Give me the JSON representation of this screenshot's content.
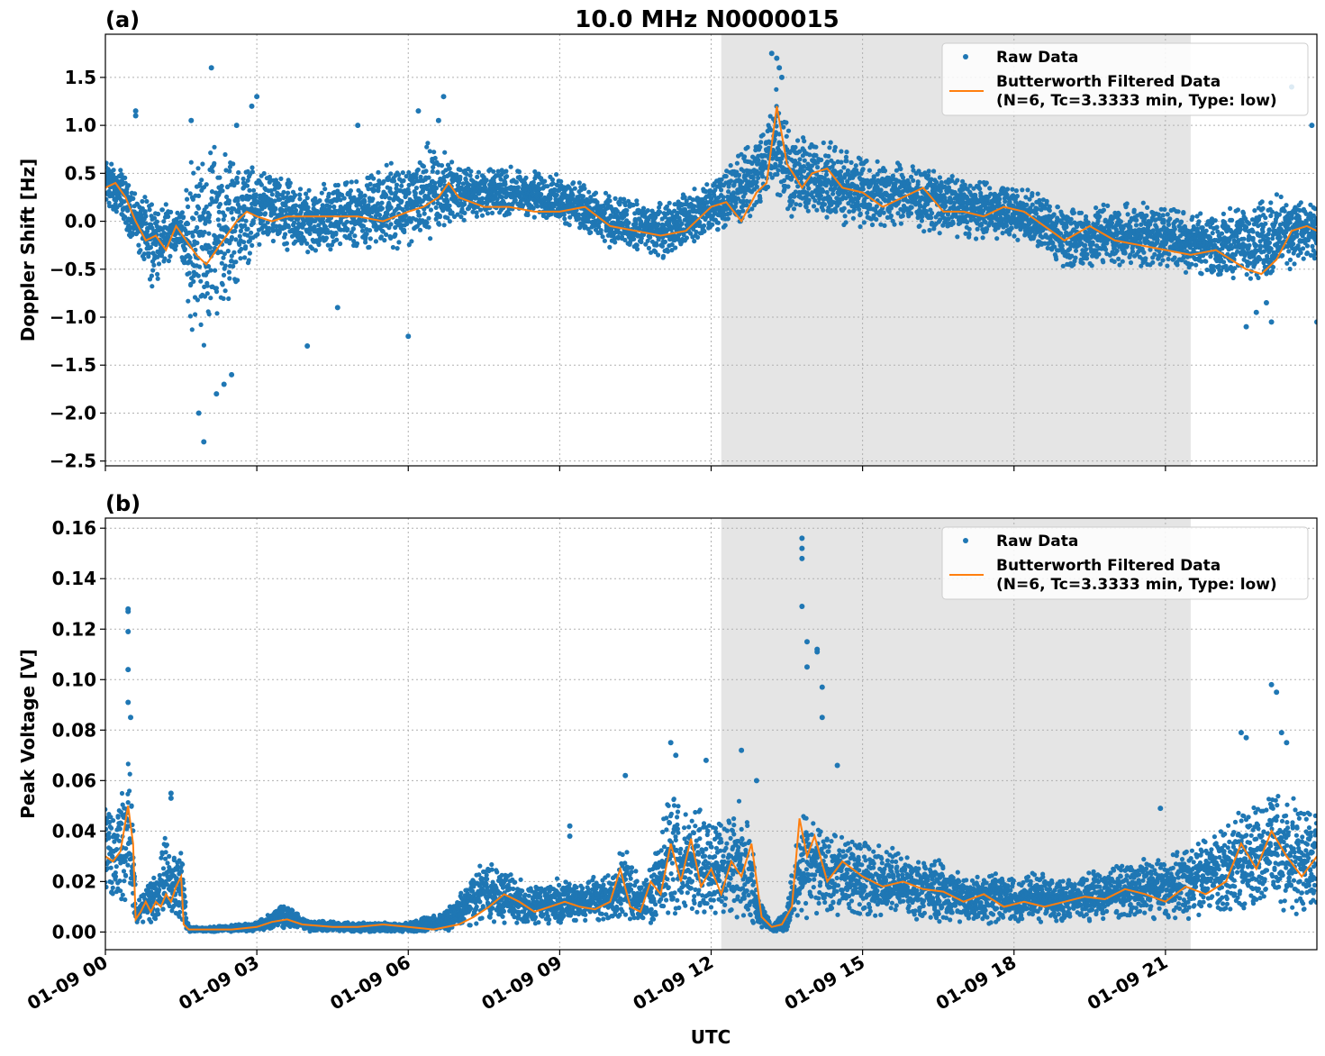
{
  "figure": {
    "title": "10.0 MHz N0000015",
    "xlabel": "UTC",
    "x_ticks": [
      "01-09 00",
      "01-09 03",
      "01-09 06",
      "01-09 09",
      "01-09 12",
      "01-09 15",
      "01-09 18",
      "01-09 21"
    ],
    "shaded_span_hours": [
      12.2,
      21.5
    ],
    "colors": {
      "raw": "#1f77b4",
      "filtered": "#ff7f0e",
      "shade": "#e5e5e5",
      "grid": "#b0b0b0"
    }
  },
  "chart_data": [
    {
      "type": "scatter",
      "panel_label": "(a)",
      "ylabel": "Doppler Shift [Hz]",
      "xlim_hours": [
        0,
        24
      ],
      "ylim": [
        -2.55,
        1.95
      ],
      "y_ticks": [
        1.5,
        1.0,
        0.5,
        0.0,
        -0.5,
        -1.0,
        -1.5,
        -2.0,
        -2.5
      ],
      "y_tick_labels": [
        "1.5",
        "1.0",
        "0.5",
        "0.0",
        "−0.5",
        "−1.0",
        "−1.5",
        "−2.0",
        "−2.5"
      ],
      "grid": true,
      "legend": {
        "placement": "top-right",
        "entries": [
          "Raw Data",
          "Butterworth Filtered Data",
          "(N=6, Tc=3.3333 min, Type: low)"
        ]
      },
      "series": [
        {
          "name": "Raw Data",
          "kind": "band",
          "x": [
            0,
            0.3,
            0.6,
            0.9,
            1.2,
            1.5,
            1.7,
            1.9,
            2.1,
            2.4,
            2.7,
            3.0,
            3.5,
            4.0,
            5.0,
            6.0,
            6.5,
            7.0,
            8.0,
            9.0,
            10.0,
            11.0,
            11.8,
            12.5,
            13.0,
            13.3,
            13.6,
            14.0,
            15.0,
            16.0,
            17.0,
            18.0,
            19.0,
            20.0,
            21.0,
            22.0,
            22.5,
            23.0,
            23.5,
            24.0
          ],
          "low": [
            0.1,
            0.0,
            -0.3,
            -0.7,
            -0.5,
            -0.3,
            -1.3,
            -1.4,
            -1.1,
            -1.0,
            -0.6,
            -0.3,
            -0.4,
            -0.4,
            -0.3,
            -0.3,
            -0.2,
            0.0,
            0.0,
            0.0,
            -0.3,
            -0.4,
            -0.2,
            -0.1,
            0.1,
            0.2,
            0.0,
            0.0,
            -0.1,
            -0.1,
            -0.2,
            -0.2,
            -0.5,
            -0.5,
            -0.5,
            -0.6,
            -0.6,
            -0.7,
            -0.5,
            -0.5
          ],
          "high": [
            0.7,
            0.6,
            0.3,
            0.3,
            0.2,
            0.1,
            0.8,
            0.9,
            0.9,
            0.8,
            0.7,
            0.6,
            0.5,
            0.4,
            0.5,
            0.7,
            0.9,
            0.6,
            0.6,
            0.5,
            0.3,
            0.2,
            0.4,
            0.7,
            1.0,
            1.5,
            1.0,
            0.9,
            0.7,
            0.6,
            0.5,
            0.4,
            0.2,
            0.2,
            0.2,
            0.1,
            0.2,
            0.3,
            0.3,
            0.2
          ]
        },
        {
          "name": "Raw Data outliers",
          "kind": "points",
          "x": [
            0.6,
            0.6,
            1.7,
            1.85,
            1.95,
            2.1,
            2.2,
            2.35,
            2.5,
            2.6,
            2.9,
            3.0,
            4.0,
            4.6,
            5.0,
            6.0,
            6.2,
            6.6,
            6.7,
            13.2,
            13.3,
            13.35,
            13.4,
            22.6,
            22.8,
            23.0,
            23.1,
            23.5,
            23.9,
            24.0
          ],
          "y": [
            1.1,
            1.15,
            1.05,
            -2.0,
            -2.3,
            1.6,
            -1.8,
            -1.7,
            -1.6,
            1.0,
            1.2,
            1.3,
            -1.3,
            -0.9,
            1.0,
            -1.2,
            1.15,
            1.05,
            1.3,
            1.75,
            1.7,
            1.6,
            1.5,
            -1.1,
            -0.95,
            -0.85,
            -1.05,
            1.4,
            1.0,
            -1.05
          ]
        },
        {
          "name": "Butterworth Filtered Data",
          "kind": "line",
          "x": [
            0,
            0.2,
            0.4,
            0.6,
            0.8,
            1.0,
            1.2,
            1.4,
            1.6,
            1.8,
            2.0,
            2.2,
            2.4,
            2.6,
            2.8,
            3.0,
            3.3,
            3.6,
            4.0,
            4.5,
            5.0,
            5.5,
            6.0,
            6.3,
            6.6,
            6.8,
            7.0,
            7.5,
            8.0,
            8.5,
            9.0,
            9.5,
            10.0,
            10.5,
            11.0,
            11.5,
            11.8,
            12.0,
            12.3,
            12.6,
            12.9,
            13.1,
            13.3,
            13.5,
            13.8,
            14.0,
            14.3,
            14.6,
            15.0,
            15.4,
            15.8,
            16.2,
            16.6,
            17.0,
            17.4,
            17.8,
            18.2,
            18.6,
            19.0,
            19.5,
            20.0,
            20.5,
            21.0,
            21.5,
            22.0,
            22.3,
            22.6,
            22.9,
            23.2,
            23.5,
            23.8,
            24.0
          ],
          "y": [
            0.35,
            0.4,
            0.25,
            0.0,
            -0.2,
            -0.15,
            -0.3,
            -0.05,
            -0.2,
            -0.35,
            -0.45,
            -0.3,
            -0.15,
            0.0,
            0.1,
            0.05,
            0.0,
            0.05,
            0.05,
            0.05,
            0.05,
            0.0,
            0.1,
            0.15,
            0.25,
            0.4,
            0.25,
            0.15,
            0.15,
            0.1,
            0.1,
            0.15,
            -0.05,
            -0.1,
            -0.15,
            -0.1,
            0.05,
            0.15,
            0.2,
            0.0,
            0.3,
            0.4,
            1.2,
            0.6,
            0.35,
            0.5,
            0.55,
            0.35,
            0.3,
            0.15,
            0.25,
            0.35,
            0.1,
            0.1,
            0.05,
            0.15,
            0.1,
            -0.05,
            -0.2,
            -0.05,
            -0.2,
            -0.25,
            -0.3,
            -0.35,
            -0.3,
            -0.4,
            -0.5,
            -0.55,
            -0.4,
            -0.1,
            -0.05,
            -0.1
          ]
        }
      ]
    },
    {
      "type": "scatter",
      "panel_label": "(b)",
      "ylabel": "Peak Voltage [V]",
      "xlim_hours": [
        0,
        24
      ],
      "ylim": [
        -0.007,
        0.164
      ],
      "y_ticks": [
        0.16,
        0.14,
        0.12,
        0.1,
        0.08,
        0.06,
        0.04,
        0.02,
        0.0
      ],
      "y_tick_labels": [
        "0.16",
        "0.14",
        "0.12",
        "0.10",
        "0.08",
        "0.06",
        "0.04",
        "0.02",
        "0.00"
      ],
      "grid": true,
      "legend": {
        "placement": "top-right",
        "entries": [
          "Raw Data",
          "Butterworth Filtered Data",
          "(N=6, Tc=3.3333 min, Type: low)"
        ]
      },
      "series": [
        {
          "name": "Raw Data",
          "kind": "band",
          "x": [
            0,
            0.2,
            0.35,
            0.45,
            0.55,
            0.6,
            0.8,
            1.0,
            1.2,
            1.4,
            1.55,
            1.6,
            1.7,
            2.0,
            3.0,
            3.5,
            4.0,
            5.0,
            6.0,
            6.7,
            7.0,
            7.5,
            8.0,
            8.5,
            9.0,
            9.5,
            10.0,
            10.3,
            10.6,
            11.0,
            11.2,
            11.5,
            11.8,
            12.0,
            12.4,
            12.7,
            12.9,
            13.2,
            13.5,
            13.7,
            13.9,
            14.1,
            14.5,
            15.0,
            15.5,
            16.0,
            16.5,
            17.0,
            17.5,
            18.0,
            18.5,
            19.0,
            19.5,
            20.0,
            20.5,
            21.0,
            21.5,
            22.0,
            22.5,
            23.0,
            23.5,
            24.0
          ],
          "low": [
            0.008,
            0.01,
            0.01,
            0.015,
            0.005,
            0.002,
            0.003,
            0.004,
            0.004,
            0.003,
            0.001,
            0.0,
            0.0,
            0.0,
            0.0,
            0.001,
            0.0,
            0.0,
            0.0,
            0.0,
            0.001,
            0.003,
            0.003,
            0.002,
            0.002,
            0.003,
            0.003,
            0.005,
            0.001,
            0.003,
            0.002,
            0.005,
            0.005,
            0.003,
            0.003,
            0.002,
            0.002,
            0.0,
            0.0,
            0.002,
            0.004,
            0.005,
            0.005,
            0.005,
            0.005,
            0.005,
            0.003,
            0.003,
            0.003,
            0.003,
            0.003,
            0.004,
            0.004,
            0.005,
            0.005,
            0.005,
            0.005,
            0.006,
            0.006,
            0.007,
            0.005,
            0.005
          ],
          "high": [
            0.055,
            0.045,
            0.06,
            0.07,
            0.06,
            0.01,
            0.02,
            0.022,
            0.045,
            0.03,
            0.035,
            0.005,
            0.002,
            0.002,
            0.004,
            0.012,
            0.005,
            0.004,
            0.004,
            0.008,
            0.015,
            0.03,
            0.025,
            0.018,
            0.022,
            0.022,
            0.025,
            0.035,
            0.02,
            0.04,
            0.065,
            0.05,
            0.05,
            0.045,
            0.05,
            0.055,
            0.02,
            0.002,
            0.01,
            0.04,
            0.05,
            0.045,
            0.04,
            0.038,
            0.035,
            0.03,
            0.03,
            0.025,
            0.025,
            0.022,
            0.025,
            0.022,
            0.025,
            0.028,
            0.03,
            0.03,
            0.035,
            0.04,
            0.05,
            0.06,
            0.055,
            0.05
          ]
        },
        {
          "name": "Raw Data outliers",
          "kind": "points",
          "x": [
            0.45,
            0.45,
            0.45,
            0.45,
            0.45,
            0.5,
            1.3,
            1.3,
            9.2,
            9.2,
            10.3,
            11.2,
            11.3,
            11.9,
            12.6,
            12.9,
            13.8,
            13.8,
            13.8,
            13.8,
            13.9,
            13.9,
            14.1,
            14.1,
            14.2,
            14.2,
            14.5,
            20.9,
            22.5,
            22.6,
            23.1,
            23.2,
            23.3,
            23.4
          ],
          "y": [
            0.128,
            0.127,
            0.119,
            0.104,
            0.091,
            0.085,
            0.055,
            0.053,
            0.042,
            0.038,
            0.062,
            0.075,
            0.07,
            0.068,
            0.072,
            0.06,
            0.156,
            0.152,
            0.148,
            0.129,
            0.115,
            0.105,
            0.112,
            0.111,
            0.097,
            0.085,
            0.066,
            0.049,
            0.079,
            0.077,
            0.098,
            0.095,
            0.079,
            0.075
          ]
        },
        {
          "name": "Butterworth Filtered Data",
          "kind": "line",
          "x": [
            0,
            0.15,
            0.3,
            0.45,
            0.55,
            0.6,
            0.7,
            0.8,
            0.9,
            1.0,
            1.1,
            1.2,
            1.3,
            1.4,
            1.5,
            1.55,
            1.65,
            2.0,
            2.5,
            3.0,
            3.3,
            3.6,
            3.9,
            4.5,
            5.0,
            5.5,
            6.0,
            6.5,
            7.0,
            7.3,
            7.6,
            7.9,
            8.2,
            8.5,
            8.8,
            9.1,
            9.4,
            9.7,
            10.0,
            10.2,
            10.4,
            10.6,
            10.8,
            11.0,
            11.2,
            11.4,
            11.6,
            11.8,
            12.0,
            12.2,
            12.4,
            12.6,
            12.8,
            13.0,
            13.2,
            13.4,
            13.6,
            13.75,
            13.9,
            14.05,
            14.3,
            14.6,
            15.0,
            15.4,
            15.8,
            16.2,
            16.6,
            17.0,
            17.4,
            17.8,
            18.2,
            18.6,
            19.0,
            19.4,
            19.8,
            20.2,
            20.6,
            21.0,
            21.4,
            21.8,
            22.2,
            22.5,
            22.8,
            23.1,
            23.4,
            23.7,
            24.0
          ],
          "y": [
            0.03,
            0.028,
            0.032,
            0.05,
            0.035,
            0.005,
            0.008,
            0.012,
            0.008,
            0.012,
            0.01,
            0.015,
            0.012,
            0.018,
            0.022,
            0.003,
            0.001,
            0.001,
            0.001,
            0.002,
            0.004,
            0.005,
            0.003,
            0.002,
            0.002,
            0.003,
            0.002,
            0.001,
            0.003,
            0.006,
            0.01,
            0.015,
            0.012,
            0.008,
            0.01,
            0.012,
            0.01,
            0.009,
            0.012,
            0.025,
            0.01,
            0.008,
            0.02,
            0.015,
            0.035,
            0.02,
            0.037,
            0.018,
            0.025,
            0.015,
            0.028,
            0.022,
            0.035,
            0.006,
            0.002,
            0.003,
            0.01,
            0.045,
            0.03,
            0.038,
            0.02,
            0.028,
            0.022,
            0.018,
            0.02,
            0.017,
            0.016,
            0.012,
            0.015,
            0.01,
            0.012,
            0.01,
            0.012,
            0.014,
            0.013,
            0.017,
            0.015,
            0.012,
            0.018,
            0.015,
            0.02,
            0.035,
            0.025,
            0.04,
            0.03,
            0.022,
            0.03
          ]
        }
      ]
    }
  ]
}
